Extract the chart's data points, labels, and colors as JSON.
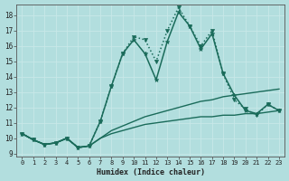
{
  "xlabel": "Humidex (Indice chaleur)",
  "background_color": "#b2dede",
  "grid_color": "#d4eeee",
  "line_color": "#1a6b5a",
  "xlim": [
    -0.5,
    23.5
  ],
  "ylim": [
    8.8,
    18.7
  ],
  "yticks": [
    9,
    10,
    11,
    12,
    13,
    14,
    15,
    16,
    17,
    18
  ],
  "xticks": [
    0,
    1,
    2,
    3,
    4,
    5,
    6,
    7,
    8,
    9,
    10,
    11,
    12,
    13,
    14,
    15,
    16,
    17,
    18,
    19,
    20,
    21,
    22,
    23
  ],
  "series": [
    {
      "x": [
        0,
        1,
        2,
        3,
        4,
        5,
        6,
        7,
        8,
        9,
        10,
        11,
        12,
        13,
        14,
        15,
        16,
        17,
        18,
        19,
        20,
        21,
        22,
        23
      ],
      "y": [
        10.3,
        9.9,
        9.6,
        9.7,
        10.0,
        9.4,
        9.5,
        10.0,
        10.3,
        10.5,
        10.7,
        10.9,
        11.0,
        11.1,
        11.2,
        11.3,
        11.4,
        11.4,
        11.5,
        11.5,
        11.6,
        11.6,
        11.7,
        11.8
      ],
      "marker": null,
      "linewidth": 1.0,
      "linestyle": "-",
      "markersize": 2.5
    },
    {
      "x": [
        0,
        1,
        2,
        3,
        4,
        5,
        6,
        7,
        8,
        9,
        10,
        11,
        12,
        13,
        14,
        15,
        16,
        17,
        18,
        19,
        20,
        21,
        22,
        23
      ],
      "y": [
        10.3,
        9.9,
        9.6,
        9.7,
        10.0,
        9.4,
        9.5,
        10.0,
        10.5,
        10.8,
        11.1,
        11.4,
        11.6,
        11.8,
        12.0,
        12.2,
        12.4,
        12.5,
        12.7,
        12.8,
        12.9,
        13.0,
        13.1,
        13.2
      ],
      "marker": null,
      "linewidth": 1.0,
      "linestyle": "-",
      "markersize": 2.5
    },
    {
      "x": [
        0,
        1,
        2,
        3,
        4,
        5,
        6,
        7,
        8,
        9,
        10,
        11,
        12,
        13,
        14,
        15,
        16,
        17,
        18,
        19,
        20,
        21,
        22,
        23
      ],
      "y": [
        10.3,
        9.9,
        9.6,
        9.7,
        10.0,
        9.4,
        9.5,
        11.1,
        13.4,
        15.5,
        16.4,
        15.5,
        13.8,
        16.3,
        18.2,
        17.3,
        15.8,
        16.8,
        14.2,
        12.8,
        11.8,
        11.6,
        12.2,
        11.8
      ],
      "marker": "*",
      "linewidth": 1.1,
      "linestyle": "-",
      "markersize": 3.5
    },
    {
      "x": [
        0,
        1,
        2,
        3,
        4,
        5,
        6,
        7,
        8,
        9,
        10,
        11,
        12,
        13,
        14,
        15,
        16,
        17,
        18,
        19,
        20,
        21,
        22,
        23
      ],
      "y": [
        10.3,
        9.9,
        9.6,
        9.7,
        10.0,
        9.4,
        9.5,
        11.1,
        13.4,
        15.5,
        16.6,
        16.4,
        15.0,
        17.0,
        18.5,
        17.3,
        16.0,
        17.0,
        14.2,
        12.5,
        11.9,
        11.5,
        12.2,
        11.8
      ],
      "marker": "v",
      "linewidth": 1.1,
      "linestyle": "dotted",
      "markersize": 3.0
    }
  ]
}
